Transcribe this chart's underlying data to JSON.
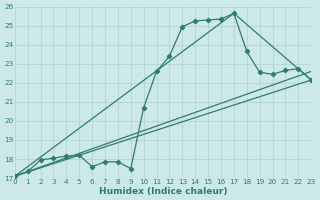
{
  "xlabel": "Humidex (Indice chaleur)",
  "xlim": [
    0,
    23
  ],
  "ylim": [
    17,
    26
  ],
  "xticks": [
    0,
    1,
    2,
    3,
    4,
    5,
    6,
    7,
    8,
    9,
    10,
    11,
    12,
    13,
    14,
    15,
    16,
    17,
    18,
    19,
    20,
    21,
    22,
    23
  ],
  "yticks": [
    17,
    18,
    19,
    20,
    21,
    22,
    23,
    24,
    25,
    26
  ],
  "bg_color": "#cce8e8",
  "line_color": "#2d7d72",
  "grid_color": "#b0d0d0",
  "main_x": [
    0,
    1,
    2,
    3,
    4,
    5,
    6,
    7,
    8,
    9,
    10,
    11,
    12,
    13,
    14,
    15,
    16,
    17,
    18,
    19,
    20,
    21,
    22,
    23
  ],
  "main_y": [
    17.1,
    17.35,
    17.95,
    18.05,
    18.15,
    18.2,
    17.6,
    17.85,
    17.85,
    17.5,
    20.7,
    22.6,
    23.4,
    24.95,
    25.25,
    25.3,
    25.35,
    25.65,
    23.65,
    22.55,
    22.45,
    22.65,
    22.75,
    22.15
  ],
  "trend1_x": [
    0,
    23
  ],
  "trend1_y": [
    17.1,
    22.15
  ],
  "trend2_x": [
    0,
    23
  ],
  "trend2_y": [
    17.1,
    22.6
  ],
  "trend3_x": [
    0,
    17,
    23
  ],
  "trend3_y": [
    17.1,
    25.65,
    22.15
  ],
  "marker": "D",
  "markersize": 2.2,
  "linewidth": 0.9
}
